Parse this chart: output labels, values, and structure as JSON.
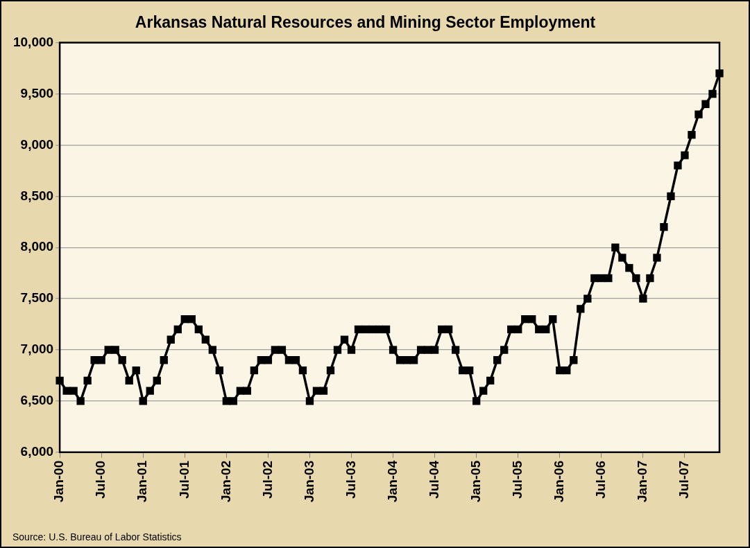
{
  "chart_data": {
    "type": "line",
    "title": "Arkansas Natural Resources and Mining Sector Employment",
    "categories": [
      "Jan-00",
      null,
      null,
      null,
      null,
      null,
      "Jul-00",
      null,
      null,
      null,
      null,
      null,
      "Jan-01",
      null,
      null,
      null,
      null,
      null,
      "Jul-01",
      null,
      null,
      null,
      null,
      null,
      "Jan-02",
      null,
      null,
      null,
      null,
      null,
      "Jul-02",
      null,
      null,
      null,
      null,
      null,
      "Jan-03",
      null,
      null,
      null,
      null,
      null,
      "Jul-03",
      null,
      null,
      null,
      null,
      null,
      "Jan-04",
      null,
      null,
      null,
      null,
      null,
      "Jul-04",
      null,
      null,
      null,
      null,
      null,
      "Jan-05",
      null,
      null,
      null,
      null,
      null,
      "Jul-05",
      null,
      null,
      null,
      null,
      null,
      "Jan-06",
      null,
      null,
      null,
      null,
      null,
      "Jul-06",
      null,
      null,
      null,
      null,
      null,
      "Jan-07",
      null,
      null,
      null,
      null,
      null,
      "Jul-07",
      null,
      null,
      null,
      null,
      null
    ],
    "series": [
      {
        "color": "#000000",
        "values": [
          6700,
          6600,
          6600,
          6500,
          6700,
          6900,
          6900,
          7000,
          7000,
          6900,
          6700,
          6800,
          6500,
          6600,
          6700,
          6900,
          7100,
          7200,
          7300,
          7300,
          7200,
          7100,
          7000,
          6800,
          6500,
          6500,
          6600,
          6600,
          6800,
          6900,
          6900,
          7000,
          7000,
          6900,
          6900,
          6800,
          6500,
          6600,
          6600,
          6800,
          7000,
          7100,
          7000,
          7200,
          7200,
          7200,
          7200,
          7200,
          7000,
          6900,
          6900,
          6900,
          7000,
          7000,
          7000,
          7200,
          7200,
          7000,
          6800,
          6800,
          6500,
          6600,
          6700,
          6900,
          7000,
          7200,
          7200,
          7300,
          7300,
          7200,
          7200,
          7300,
          6800,
          6800,
          6900,
          7400,
          7500,
          7700,
          7700,
          7700,
          8000,
          7900,
          7800,
          7700,
          7500,
          7700,
          7900,
          8200,
          8500,
          8800,
          8900,
          9100,
          9300,
          9400,
          9500,
          9700
        ]
      }
    ],
    "ylim": [
      6000,
      10000
    ],
    "yticks": [
      {
        "value": 6000,
        "label": "6,000"
      },
      {
        "value": 6500,
        "label": "6,500"
      },
      {
        "value": 7000,
        "label": "7,000"
      },
      {
        "value": 7500,
        "label": "7,500"
      },
      {
        "value": 8000,
        "label": "8,000"
      },
      {
        "value": 8500,
        "label": "8,500"
      },
      {
        "value": 9000,
        "label": "9,000"
      },
      {
        "value": 9500,
        "label": "9,500"
      },
      {
        "value": 10000,
        "label": "10,000"
      }
    ],
    "grid": "y",
    "legend": false,
    "marker": "square",
    "line_style": "solid",
    "annotations": [
      "Source:  U.S. Bureau of Labor Statistics"
    ]
  }
}
